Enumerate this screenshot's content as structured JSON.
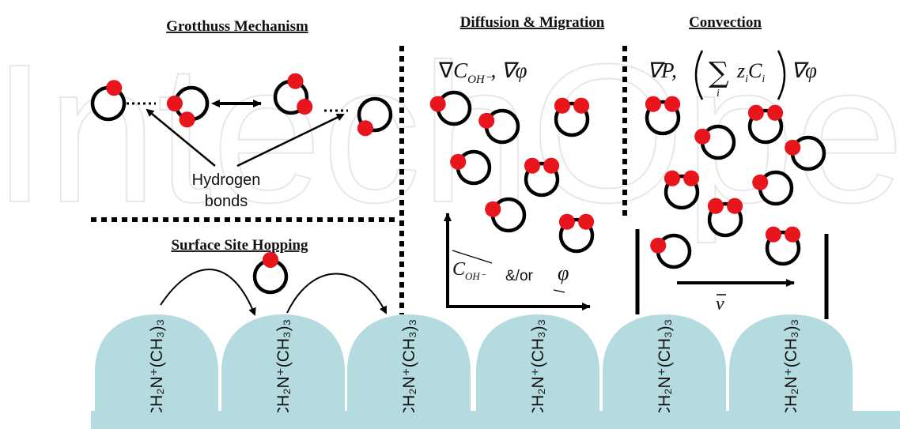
{
  "watermark": "IntechOpen",
  "panels": {
    "grotthuss": {
      "title": "Grotthuss Mechanism",
      "label_line1": "Hydrogen",
      "label_line2": "bonds"
    },
    "surface": {
      "title": "Surface Site Hopping"
    },
    "diffusion": {
      "title": "Diffusion & Migration",
      "grad_nabla": "∇",
      "grad_c": "C",
      "grad_c_sub": "OH⁻",
      "grad_comma": ",",
      "grad_phi": "∇φ",
      "axis_c": "C",
      "axis_c_sub": "OH⁻",
      "axis_andor": "&/or",
      "axis_phi": "φ"
    },
    "convection": {
      "title": "Convection",
      "grad_p": "∇P,",
      "sum_symbol": "∑",
      "sum_index": "i",
      "sum_term": "z",
      "sum_term_sub": "i",
      "sum_term2": "C",
      "sum_term2_sub": "i",
      "grad_phi": "∇φ",
      "velocity": "v"
    }
  },
  "surface_sites": [
    {
      "label": "CH₂N⁺(CH₃)₃"
    },
    {
      "label": "CH₂N⁺(CH₃)₃"
    },
    {
      "label": "CH₂N⁺(CH₃)₃"
    },
    {
      "label": "CH₂N⁺(CH₃)₃"
    },
    {
      "label": "CH₂N⁺(CH₃)₃"
    },
    {
      "label": "CH₂N⁺(CH₃)₃"
    }
  ],
  "colors": {
    "membrane": "#b4dbe0",
    "atom": "#e8161c",
    "line": "#000000"
  }
}
